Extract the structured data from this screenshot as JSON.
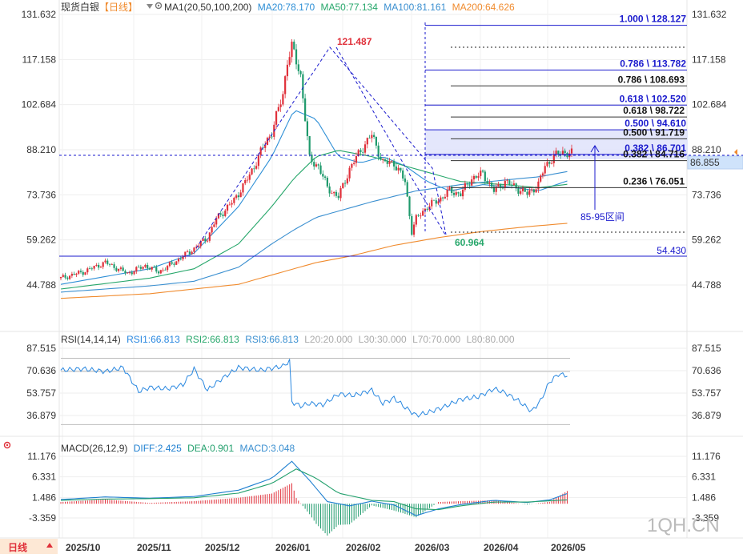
{
  "header": {
    "symbol": "现货白银",
    "period": "【日线】",
    "ma_params": "MA1(20,50,100,200)",
    "ma20": "MA20:78.170",
    "ma50": "MA50:77.134",
    "ma100": "MA100:81.161",
    "ma200": "MA200:64.626"
  },
  "colors": {
    "up": "#e0303a",
    "down": "#1f9a6c",
    "ma20": "#2e8fd6",
    "ma50": "#27a76b",
    "ma100": "#3a8fd0",
    "ma200": "#f08b2e",
    "fib": "#1a1acd",
    "grid": "#eeeeee",
    "rsi": "#2a88e0",
    "diff": "#1e7fd0",
    "dea": "#23a06d",
    "price_tag": "#cfe3fb"
  },
  "icons": {
    "fold": "triangle-down-icon",
    "settings": "gear-icon",
    "target": "crosshair-icon"
  },
  "y_axis_labels": [
    "131.632",
    "117.158",
    "102.684",
    "88.210",
    "73.736",
    "59.262",
    "44.788"
  ],
  "current_price_label": "86.855",
  "x_axis_labels": [
    "2025/10",
    "2025/11",
    "2025/12",
    "2026/01",
    "2026/02",
    "2026/03",
    "2026/04",
    "2026/05"
  ],
  "period_button": "日线",
  "annotations": {
    "peak": "121.487",
    "trough": "60.964",
    "support": "54.430",
    "range_label": "85-95区间"
  },
  "fib_levels_a": [
    {
      "label": "1.000 \\ 128.127",
      "value": 128.127
    },
    {
      "label": "0.786 \\ 113.782",
      "value": 113.782
    },
    {
      "label": "0.618 \\ 102.520",
      "value": 102.52
    },
    {
      "label": "0.500 \\ 94.610",
      "value": 94.61
    },
    {
      "label": "0.382 \\ 86.701",
      "value": 86.701
    }
  ],
  "fib_levels_b": [
    {
      "label": "0.786 \\ 108.693",
      "value": 108.693
    },
    {
      "label": "0.618 \\ 98.722",
      "value": 98.722
    },
    {
      "label": "0.500 \\ 91.719",
      "value": 91.719
    },
    {
      "label": "0.382 \\ 84.716",
      "value": 84.716
    },
    {
      "label": "0.236 \\ 76.051",
      "value": 76.051
    }
  ],
  "rsi_panel": {
    "params": "RSI(14,14,14)",
    "rsi1": "RSI1:66.813",
    "rsi2": "RSI2:66.813",
    "rsi3": "RSI3:66.813",
    "l20": "L20:20.000",
    "l30": "L30:30.000",
    "l70": "L70:70.000",
    "l80": "L80:80.000",
    "axis_labels": [
      "87.515",
      "70.636",
      "53.757",
      "36.879"
    ]
  },
  "macd_panel": {
    "params": "MACD(26,12,9)",
    "diff": "DIFF:2.425",
    "dea": "DEA:0.901",
    "macd": "MACD:3.048",
    "axis_labels": [
      "11.176",
      "6.331",
      "1.486",
      "-3.359"
    ]
  },
  "watermark": "1QH.CN",
  "chart_data": {
    "type": "candlestick",
    "ylim": [
      40.0,
      134.0
    ],
    "x_months": [
      "2025/10",
      "2025/11",
      "2025/12",
      "2026/01",
      "2026/02",
      "2026/03",
      "2026/04",
      "2026/05"
    ],
    "close_series": {
      "name": "现货白银",
      "x_index": [
        0,
        10,
        20,
        30,
        38,
        44,
        50,
        55,
        60,
        66,
        70,
        78,
        85,
        90,
        95,
        100,
        102,
        104,
        108,
        112,
        116,
        120,
        125,
        130,
        135,
        140,
        145,
        150,
        155,
        158,
        160,
        165,
        170,
        175,
        180,
        185,
        190,
        195,
        200,
        205,
        210,
        215,
        218,
        222,
        226,
        230
      ],
      "values": [
        47.0,
        49.0,
        52.0,
        48.5,
        51.0,
        49.0,
        51.5,
        54.0,
        56.5,
        60.0,
        66.0,
        72.0,
        80.0,
        87.5,
        94.0,
        106.0,
        117.0,
        121.0,
        112.0,
        85.0,
        83.0,
        76.0,
        73.0,
        82.0,
        88.0,
        93.0,
        84.0,
        84.0,
        78.0,
        62.0,
        66.0,
        70.0,
        72.0,
        75.0,
        74.0,
        79.0,
        80.5,
        75.0,
        78.0,
        76.0,
        74.0,
        77.0,
        83.0,
        86.0,
        87.5,
        86.9
      ]
    },
    "ma_series": [
      {
        "name": "MA20",
        "x_index": [
          0,
          40,
          60,
          80,
          95,
          105,
          115,
          125,
          135,
          145,
          155,
          165,
          175,
          190,
          205,
          215,
          228
        ],
        "values": [
          45.0,
          50.0,
          55.0,
          70.0,
          86.0,
          101.0,
          98.0,
          86.0,
          84.0,
          86.0,
          83.0,
          78.0,
          75.0,
          77.0,
          76.0,
          75.0,
          78.2
        ]
      },
      {
        "name": "MA50",
        "x_index": [
          0,
          40,
          60,
          80,
          95,
          105,
          115,
          125,
          140,
          150,
          165,
          180,
          200,
          215,
          228
        ],
        "values": [
          43.5,
          47.0,
          50.0,
          58.0,
          70.0,
          79.0,
          86.0,
          88.0,
          86.0,
          84.0,
          81.0,
          78.0,
          77.0,
          76.0,
          77.1
        ]
      },
      {
        "name": "MA100",
        "x_index": [
          0,
          40,
          60,
          80,
          95,
          105,
          115,
          125,
          140,
          160,
          180,
          200,
          215,
          228
        ],
        "values": [
          42.5,
          44.5,
          46.0,
          50.5,
          58.0,
          62.5,
          66.5,
          68.5,
          71.5,
          75.0,
          77.0,
          78.5,
          79.5,
          81.2
        ]
      },
      {
        "name": "MA200",
        "x_index": [
          0,
          40,
          60,
          80,
          100,
          115,
          130,
          150,
          170,
          190,
          210,
          228
        ],
        "values": [
          40.5,
          42.0,
          43.5,
          45.0,
          49.0,
          52.0,
          54.0,
          57.5,
          60.0,
          62.0,
          63.5,
          64.6
        ]
      }
    ],
    "rsi": {
      "ylim": [
        25,
        95
      ],
      "x_index": [
        0,
        10,
        20,
        28,
        35,
        40,
        48,
        55,
        60,
        66,
        72,
        80,
        90,
        100,
        103,
        104,
        108,
        112,
        118,
        125,
        132,
        140,
        145,
        150,
        155,
        160,
        165,
        172,
        180,
        188,
        195,
        200,
        206,
        212,
        216,
        220,
        224,
        228
      ],
      "values": [
        71,
        72,
        70,
        73,
        55,
        58,
        57,
        60,
        72,
        56,
        64,
        73,
        71,
        74,
        78,
        47,
        44,
        46,
        45,
        53,
        52,
        56,
        46,
        50,
        43,
        37,
        39,
        43,
        49,
        51,
        57,
        54,
        48,
        40,
        48,
        62,
        68,
        67
      ]
    },
    "macd": {
      "ylim": [
        -6.5,
        13.0
      ],
      "diff": {
        "x_index": [
          0,
          20,
          40,
          60,
          80,
          95,
          104,
          112,
          120,
          130,
          140,
          150,
          160,
          170,
          180,
          195,
          210,
          220,
          228
        ],
        "values": [
          1.0,
          1.6,
          1.3,
          1.7,
          3.2,
          6.0,
          10.0,
          5.5,
          0.5,
          -0.5,
          0.6,
          -0.3,
          -2.8,
          -1.2,
          -0.2,
          0.8,
          0.3,
          0.9,
          2.4
        ]
      },
      "dea": {
        "x_index": [
          0,
          20,
          40,
          60,
          80,
          95,
          106,
          115,
          125,
          140,
          150,
          160,
          170,
          180,
          195,
          210,
          228
        ],
        "values": [
          0.8,
          1.1,
          1.2,
          1.4,
          2.5,
          4.8,
          8.2,
          6.0,
          2.5,
          0.8,
          0.5,
          -1.2,
          -1.4,
          -0.5,
          0.4,
          0.4,
          0.9
        ]
      }
    }
  }
}
